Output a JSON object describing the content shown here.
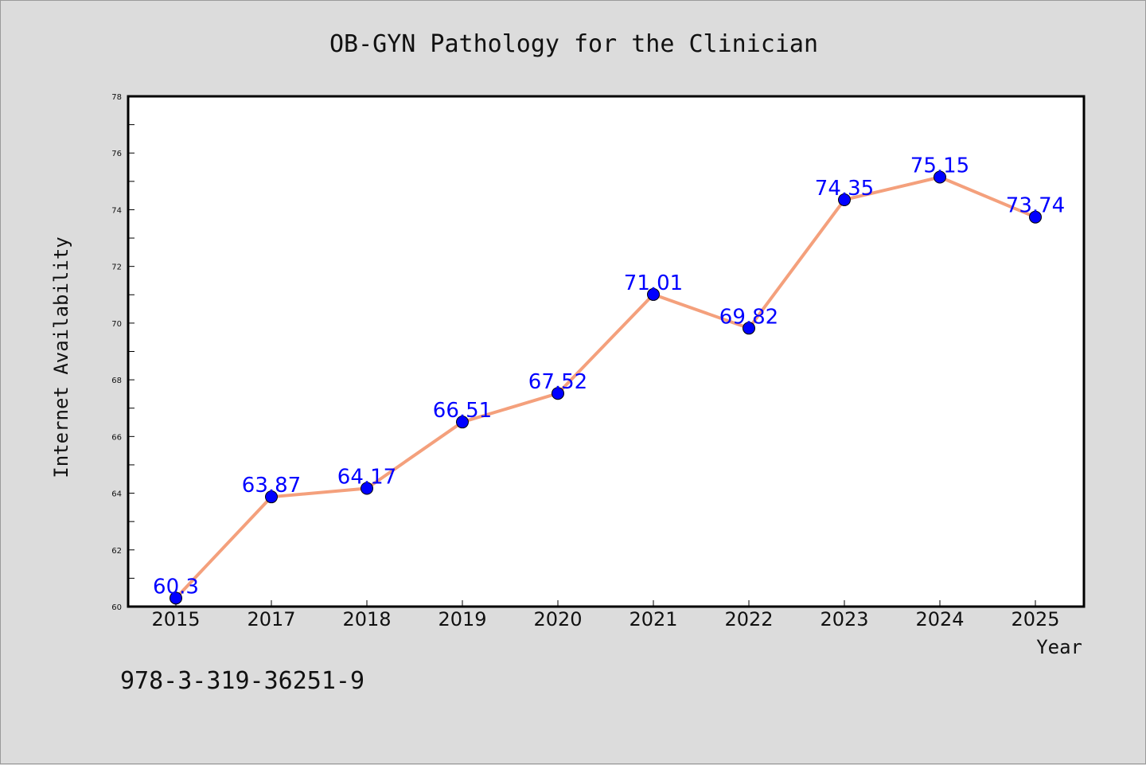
{
  "chart_data": {
    "type": "line",
    "title": "OB-GYN Pathology for the Clinician",
    "xlabel": "Year",
    "ylabel": "Internet Availability",
    "categories": [
      "2015",
      "2017",
      "2018",
      "2019",
      "2020",
      "2021",
      "2022",
      "2023",
      "2024",
      "2025"
    ],
    "series": [
      {
        "values": [
          60.3,
          63.87,
          64.17,
          66.51,
          67.52,
          71.01,
          69.82,
          74.35,
          75.15,
          73.74
        ],
        "labels": [
          "60.3",
          "63.87",
          "64.17",
          "66.51",
          "67.52",
          "71.01",
          "69.82",
          "74.35",
          "75.15",
          "73.74"
        ]
      }
    ],
    "ylim": [
      60,
      78
    ],
    "yticks": [
      "60",
      "62",
      "64",
      "66",
      "68",
      "70",
      "72",
      "74",
      "76",
      "78"
    ],
    "grid": false,
    "line_color": "#f4a07c",
    "marker_color": "#0000ff",
    "label_color": "#0000ff"
  },
  "footer": {
    "isbn": "978-3-319-36251-9"
  }
}
